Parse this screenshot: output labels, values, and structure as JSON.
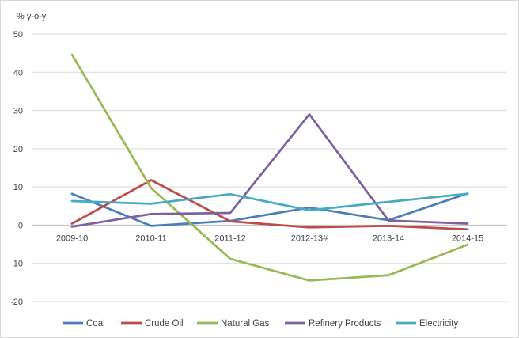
{
  "chart_data": {
    "type": "line",
    "title": "",
    "ylabel": "% y-o-y",
    "xlabel": "",
    "categories": [
      "2009-10",
      "2010-11",
      "2011-12",
      "2012-13#",
      "2013-14",
      "2014-15"
    ],
    "ylim": [
      -20,
      50
    ],
    "yticks": [
      50,
      40,
      30,
      20,
      10,
      0,
      -10,
      -20
    ],
    "ytick_labels": [
      "50",
      "40",
      "30",
      "20",
      "10",
      "0",
      "-10",
      "-20"
    ],
    "grid": true,
    "legend_position": "bottom",
    "series": [
      {
        "name": "Coal",
        "color": "#4a7ebb",
        "values": [
          8.2,
          -0.2,
          1.1,
          4.6,
          1.3,
          8.3
        ]
      },
      {
        "name": "Crude Oil",
        "color": "#be4b48",
        "values": [
          0.4,
          11.8,
          1.0,
          -0.6,
          -0.2,
          -1.1
        ]
      },
      {
        "name": "Natural Gas",
        "color": "#98b954",
        "values": [
          44.6,
          9.7,
          -8.8,
          -14.5,
          -13.1,
          -5.1
        ]
      },
      {
        "name": "Refinery Products",
        "color": "#7d60a0",
        "values": [
          -0.4,
          2.9,
          3.2,
          29.0,
          1.2,
          0.4
        ]
      },
      {
        "name": "Electricity",
        "color": "#46aac4",
        "values": [
          6.3,
          5.6,
          8.1,
          3.9,
          6.1,
          8.2
        ]
      }
    ]
  }
}
